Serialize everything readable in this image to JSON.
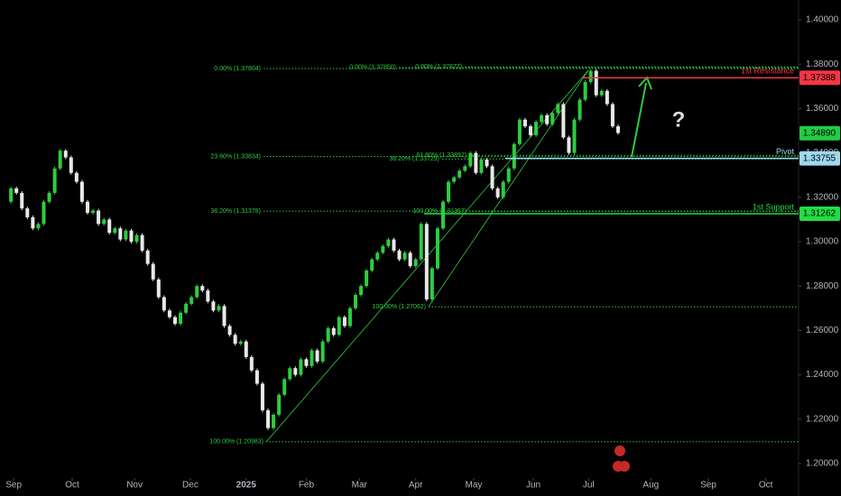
{
  "chart_data": {
    "type": "candlestick",
    "values": [
      1.318,
      1.324,
      1.322,
      1.315,
      1.311,
      1.306,
      1.308,
      1.318,
      1.322,
      1.333,
      1.341,
      1.338,
      1.331,
      1.327,
      1.318,
      1.313,
      1.314,
      1.308,
      1.31,
      1.304,
      1.306,
      1.301,
      1.305,
      1.3,
      1.303,
      1.296,
      1.29,
      1.283,
      1.275,
      1.269,
      1.266,
      1.263,
      1.268,
      1.272,
      1.275,
      1.28,
      1.278,
      1.273,
      1.269,
      1.271,
      1.262,
      1.258,
      1.254,
      1.255,
      1.248,
      1.242,
      1.236,
      1.224,
      1.216,
      1.222,
      1.231,
      1.238,
      1.243,
      1.24,
      1.247,
      1.244,
      1.251,
      1.246,
      1.255,
      1.261,
      1.258,
      1.266,
      1.262,
      1.27,
      1.276,
      1.28,
      1.287,
      1.292,
      1.295,
      1.298,
      1.301,
      1.296,
      1.292,
      1.295,
      1.289,
      1.292,
      1.308,
      1.274,
      1.288,
      1.306,
      1.318,
      1.327,
      1.329,
      1.332,
      1.334,
      1.34,
      1.331,
      1.337,
      1.334,
      1.324,
      1.32,
      1.327,
      1.333,
      1.344,
      1.355,
      1.352,
      1.348,
      1.354,
      1.357,
      1.353,
      1.358,
      1.362,
      1.347,
      1.34,
      1.355,
      1.364,
      1.372,
      1.377,
      1.366,
      1.368,
      1.362,
      1.352,
      1.349
    ],
    "up_color": "#2ecc40",
    "down_color": "#e8e8e8",
    "xlim": [
      -1,
      145
    ],
    "xticks": [
      {
        "value": 1.5,
        "label": "Sep"
      },
      {
        "value": 12.2,
        "label": "Oct"
      },
      {
        "value": 23.6,
        "label": "Nov"
      },
      {
        "value": 33.8,
        "label": "Dec"
      },
      {
        "value": 44,
        "label": "2025"
      },
      {
        "value": 55,
        "label": "Feb"
      },
      {
        "value": 64.7,
        "label": "Mar"
      },
      {
        "value": 75,
        "label": "Apr"
      },
      {
        "value": 85.6,
        "label": "May"
      },
      {
        "value": 96.5,
        "label": "Jun"
      },
      {
        "value": 106.6,
        "label": "Jul"
      },
      {
        "value": 118,
        "label": "Aug"
      },
      {
        "value": 128.5,
        "label": "Sep"
      },
      {
        "value": 139,
        "label": "Oct"
      }
    ],
    "ylim": [
      1.1935,
      1.40894
    ],
    "yticks": [
      {
        "value": 1.2,
        "label": "1.20000"
      },
      {
        "value": 1.22,
        "label": "1.22000"
      },
      {
        "value": 1.24,
        "label": "1.24000"
      },
      {
        "value": 1.26,
        "label": "1.26000"
      },
      {
        "value": 1.28,
        "label": "1.28000"
      },
      {
        "value": 1.3,
        "label": "1.30000"
      },
      {
        "value": 1.32,
        "label": "1.32000"
      },
      {
        "value": 1.34,
        "label": "1.34000"
      },
      {
        "value": 1.36,
        "label": "1.36000"
      },
      {
        "value": 1.38,
        "label": "1.38000"
      },
      {
        "value": 1.4,
        "label": "1.40000"
      }
    ],
    "fib_levels": [
      {
        "label": "0.00% (1.37804)",
        "value": 1.37804
      },
      {
        "label": "0.00% (1.37850)",
        "value": 1.3785
      },
      {
        "label": "0.00% (1.37877)",
        "value": 1.37877
      },
      {
        "label": "23.60% (1.33834)",
        "value": 1.33834
      },
      {
        "label": "38.20% (1.33729)",
        "value": 1.33729
      },
      {
        "label": "61.80% (1.33892)",
        "value": 1.33892
      },
      {
        "label": "38.20% (1.31378)",
        "value": 1.31378
      },
      {
        "label": "100.00% (1.31367)",
        "value": 1.31367
      },
      {
        "label": "100.00% (1.27062)",
        "value": 1.27062
      },
      {
        "label": "100.00% (1.20983)",
        "value": 1.20983
      }
    ],
    "levels": [
      {
        "name": "1st Resistance",
        "value": 1.37388,
        "color": "#f23645"
      },
      {
        "name": "Pivot",
        "value": 1.33755,
        "color": "#9fd8ef"
      },
      {
        "name": "1st Support",
        "value": 1.31262,
        "color": "#22dd44"
      }
    ],
    "current_price": {
      "value": 1.3489,
      "label": "1.34890",
      "color": "#22cc44"
    },
    "annotation": "?"
  }
}
